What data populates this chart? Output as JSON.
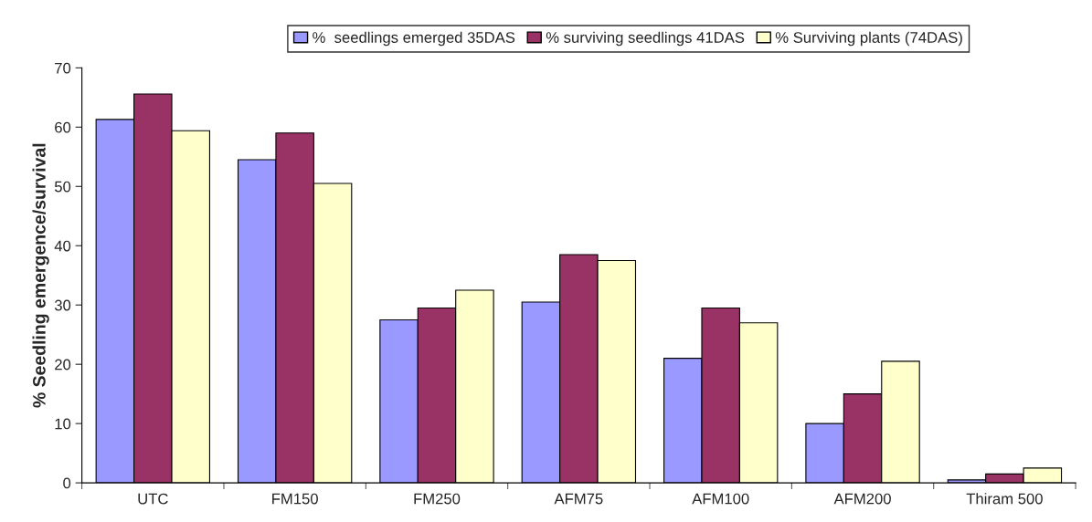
{
  "chart_data": {
    "type": "bar",
    "ylabel": "% Seedling emergence/survival",
    "categories": [
      "UTC",
      "FM150",
      "FM250",
      "AFM75",
      "AFM100",
      "AFM200",
      "Thiram 500"
    ],
    "series": [
      {
        "name": "%  seedlings emerged 35DAS",
        "color": "#9999ff",
        "values": [
          61.3,
          54.5,
          27.5,
          30.5,
          21,
          10,
          0.5
        ]
      },
      {
        "name": "% surviving seedlings 41DAS",
        "color": "#993366",
        "values": [
          65.6,
          59,
          29.5,
          38.5,
          29.5,
          15,
          1.5
        ]
      },
      {
        "name": "% Surviving plants (74DAS)",
        "color": "#ffffcc",
        "values": [
          59.4,
          50.5,
          32.5,
          37.5,
          27,
          20.5,
          2.5
        ]
      }
    ],
    "ylim": [
      0,
      70
    ],
    "yticks": [
      0,
      10,
      20,
      30,
      40,
      50,
      60,
      70
    ],
    "grid": false,
    "legend": "top"
  }
}
